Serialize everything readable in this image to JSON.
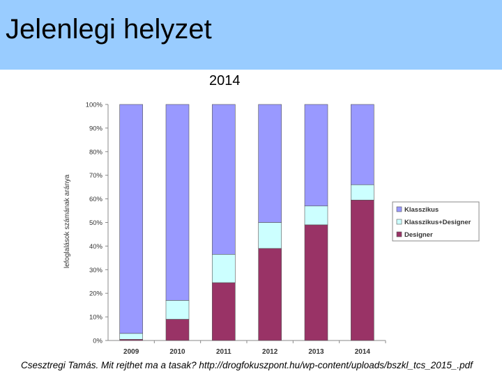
{
  "slide": {
    "title": "Jelenlegi helyzet",
    "subtitle": "2014",
    "source": "Csesztregi Tamás. Mit rejthet ma a tasak? http://drogfokuszpont.hu/wp-content/uploads/bszkl_tcs_2015_.pdf"
  },
  "colors": {
    "header_bg": "#99ccff",
    "Klasszikus": "#9999ff",
    "Klasszikus+Designer": "#ccffff",
    "Designer": "#993366"
  },
  "chart_data": {
    "type": "bar",
    "stacked": true,
    "percent_stacked": true,
    "title": "2014",
    "ylabel": "lefoglalások számának aránya",
    "xlabel": "",
    "categories": [
      "2009",
      "2010",
      "2011",
      "2012",
      "2013",
      "2014"
    ],
    "series": [
      {
        "name": "Designer",
        "color": "#993366",
        "values": [
          0.5,
          9,
          24.5,
          39,
          49,
          59.5
        ]
      },
      {
        "name": "Klasszikus+Designer",
        "color": "#ccffff",
        "values": [
          2.5,
          8,
          12,
          11,
          8,
          6.5
        ]
      },
      {
        "name": "Klasszikus",
        "color": "#9999ff",
        "values": [
          97,
          83,
          63.5,
          50,
          43,
          34
        ]
      }
    ],
    "ylim": [
      0,
      100
    ],
    "yticks": [
      "0%",
      "10%",
      "20%",
      "30%",
      "40%",
      "50%",
      "60%",
      "70%",
      "80%",
      "90%",
      "100%"
    ],
    "legend": {
      "placement": "right",
      "entries": [
        "Klasszikus",
        "Klasszikus+Designer",
        "Designer"
      ]
    },
    "grid": false
  }
}
